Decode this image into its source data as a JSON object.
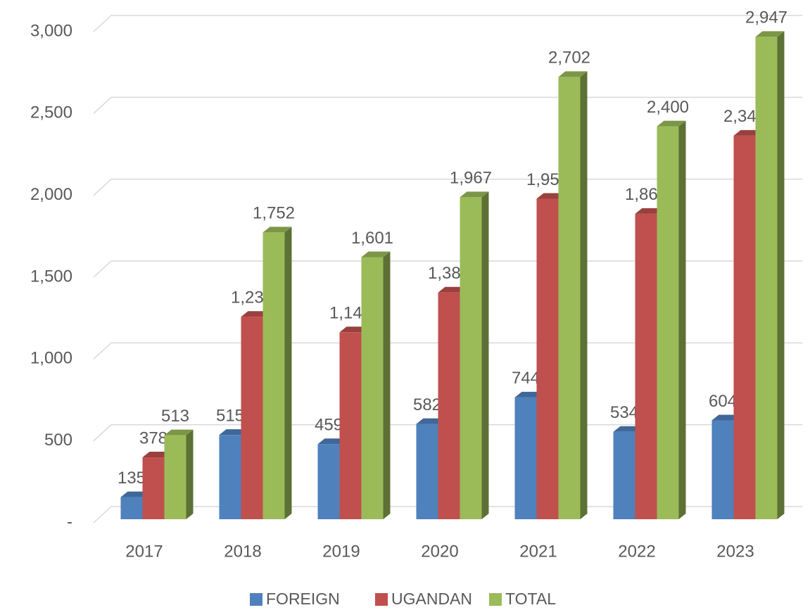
{
  "chart_data": {
    "type": "bar3d",
    "categories": [
      "2017",
      "2018",
      "2019",
      "2020",
      "2021",
      "2022",
      "2023"
    ],
    "series": [
      {
        "name": "FOREIGN",
        "color": "#4f81bd",
        "values": [
          135,
          515,
          459,
          582,
          744,
          534,
          604
        ]
      },
      {
        "name": "UGANDAN",
        "color": "#c0504d",
        "values": [
          378,
          1237,
          1142,
          1385,
          1958,
          1866,
          2343
        ],
        "value_labels": [
          "378",
          "1,237",
          "1,142",
          "1,385",
          "1,958",
          "1,866",
          "2,343"
        ]
      },
      {
        "name": "TOTAL",
        "color": "#9bbb59",
        "values": [
          513,
          1752,
          1601,
          1967,
          2702,
          2400,
          2947
        ],
        "value_labels": [
          "513",
          "1,752",
          "1,601",
          "1,967",
          "2,702",
          "2,400",
          "2,947"
        ]
      }
    ],
    "ylim": [
      0,
      3000
    ],
    "yticks": [
      {
        "value": 0,
        "label": "-"
      },
      500,
      {
        "value": 1000,
        "label": "1,000"
      },
      {
        "value": 1500,
        "label": "1,500"
      },
      {
        "value": 2000,
        "label": "2,000"
      },
      {
        "value": 2500,
        "label": "2,500"
      },
      {
        "value": 3000,
        "label": "3,000"
      }
    ],
    "grid": true,
    "legend": "bottom"
  }
}
